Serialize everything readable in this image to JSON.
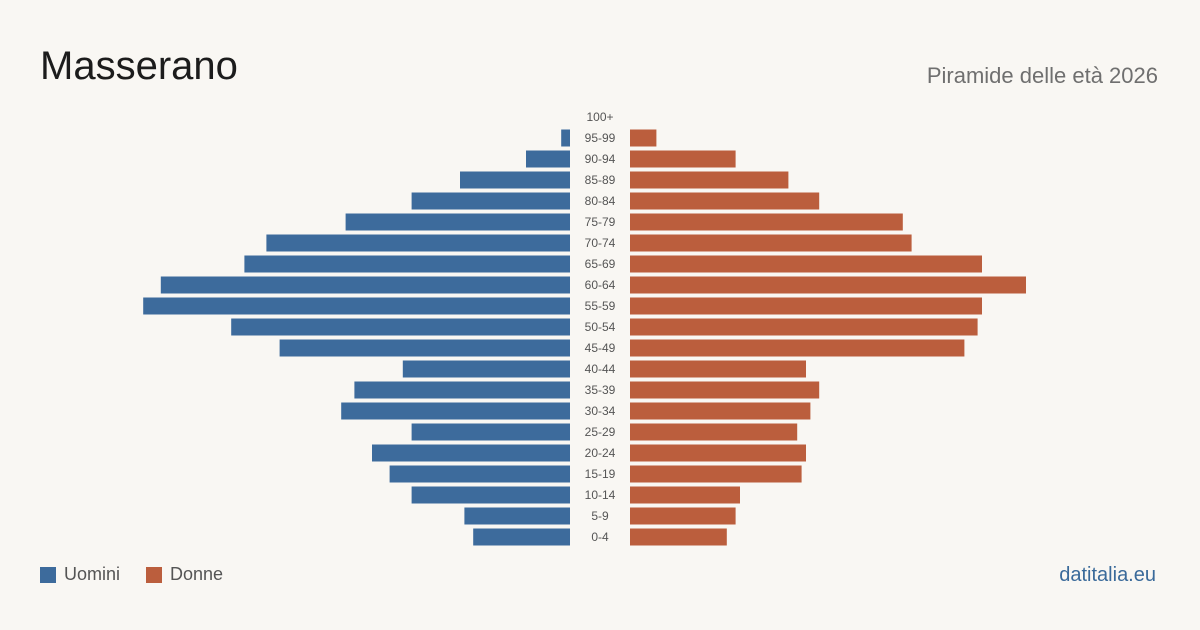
{
  "header": {
    "title": "Masserano",
    "subtitle": "Piramide delle età 2026"
  },
  "legend": {
    "men_label": "Uomini",
    "women_label": "Donne"
  },
  "footer": {
    "brand": "datitalia.eu"
  },
  "colors": {
    "men": "#3d6b9c",
    "women": "#bb5e3d",
    "background": "#f9f7f3",
    "tick_text": "#555555"
  },
  "chart_data": {
    "type": "bar",
    "orientation": "horizontal-pyramid",
    "categories": [
      "100+",
      "95-99",
      "90-94",
      "85-89",
      "80-84",
      "75-79",
      "70-74",
      "65-69",
      "60-64",
      "55-59",
      "50-54",
      "45-49",
      "40-44",
      "35-39",
      "30-34",
      "25-29",
      "20-24",
      "15-19",
      "10-14",
      "5-9",
      "0-4"
    ],
    "series": [
      {
        "name": "Uomini",
        "side": "left",
        "values": [
          0,
          2,
          10,
          25,
          36,
          51,
          69,
          74,
          93,
          97,
          77,
          66,
          38,
          49,
          52,
          36,
          45,
          41,
          36,
          24,
          22
        ]
      },
      {
        "name": "Donne",
        "side": "right",
        "values": [
          0,
          6,
          24,
          36,
          43,
          62,
          64,
          80,
          90,
          80,
          79,
          76,
          40,
          43,
          41,
          38,
          40,
          39,
          25,
          24,
          22
        ]
      }
    ],
    "xlim": [
      0,
      100
    ],
    "grid": false,
    "legend_position": "bottom-left"
  }
}
